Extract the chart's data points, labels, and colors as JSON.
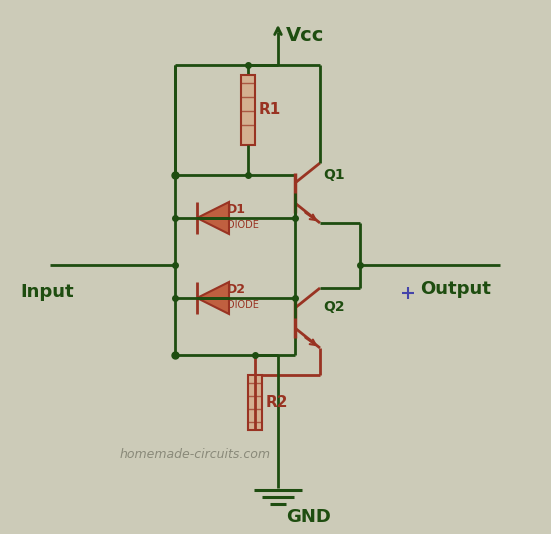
{
  "bg_color": "#cccbb8",
  "wire_color_dark": "#1e4d10",
  "wire_color_red": "#993322",
  "text_color_dark": "#1e4d10",
  "text_color_gray": "#8a8a7a",
  "title": "Vcc",
  "gnd_label": "GND",
  "input_label": "Input",
  "output_label": "Output",
  "r1_label": "R1",
  "r2_label": "R2",
  "d1_label": "D1",
  "d1_sub": "DIODE",
  "d2_label": "D2",
  "d2_sub": "DIODE",
  "q1_label": "Q1",
  "q2_label": "Q2",
  "watermark": "homemade-circuits.com",
  "crosshair_color": "#4444aa"
}
